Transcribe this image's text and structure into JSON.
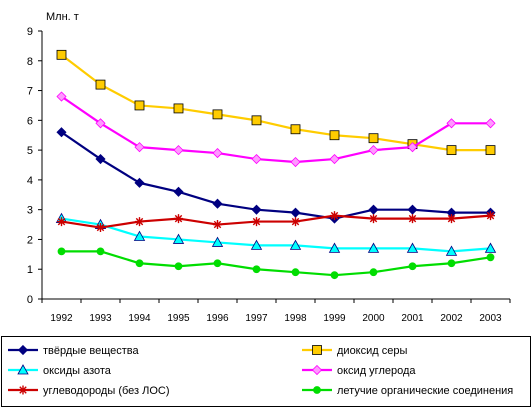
{
  "chart_data": {
    "type": "line",
    "ylabel": "Млн. т",
    "ylim": [
      0,
      9
    ],
    "yticks": [
      0,
      1,
      2,
      3,
      4,
      5,
      6,
      7,
      8,
      9
    ],
    "grid": false,
    "legend_position": "bottom",
    "categories": [
      "1992",
      "1993",
      "1994",
      "1995",
      "1996",
      "1997",
      "1998",
      "1999",
      "2000",
      "2001",
      "2002",
      "2003"
    ],
    "series": [
      {
        "name": "твёрдые вещества",
        "color": "#000080",
        "marker": "diamond",
        "marker_fill": "#000080",
        "values": [
          5.6,
          4.7,
          3.9,
          3.6,
          3.2,
          3.0,
          2.9,
          2.7,
          3.0,
          3.0,
          2.9,
          2.9
        ]
      },
      {
        "name": "диоксид серы",
        "color": "#FFCC00",
        "marker": "square",
        "marker_fill": "#FFCC00",
        "values": [
          8.2,
          7.2,
          6.5,
          6.4,
          6.2,
          6.0,
          5.7,
          5.5,
          5.4,
          5.2,
          5.0,
          5.0
        ]
      },
      {
        "name": "оксиды азота",
        "color": "#00FFFF",
        "marker": "triangle",
        "marker_fill": "#00FFFF",
        "values": [
          2.7,
          2.5,
          2.1,
          2.0,
          1.9,
          1.8,
          1.8,
          1.7,
          1.7,
          1.7,
          1.6,
          1.7
        ]
      },
      {
        "name": "оксид углерода",
        "color": "#FF00FF",
        "marker": "diamond",
        "marker_fill": "#FF99FF",
        "values": [
          6.8,
          5.9,
          5.1,
          5.0,
          4.9,
          4.7,
          4.6,
          4.7,
          5.0,
          5.1,
          5.9,
          5.9
        ]
      },
      {
        "name": "углеводороды (без ЛОС)",
        "color": "#CC0000",
        "marker": "star",
        "marker_fill": "#CC0000",
        "values": [
          2.6,
          2.4,
          2.6,
          2.7,
          2.5,
          2.6,
          2.6,
          2.8,
          2.7,
          2.7,
          2.7,
          2.8
        ]
      },
      {
        "name": "летучие органические соединения",
        "color": "#00DD00",
        "marker": "circle",
        "marker_fill": "#00DD00",
        "values": [
          1.6,
          1.6,
          1.2,
          1.1,
          1.2,
          1.0,
          0.9,
          0.8,
          0.9,
          1.1,
          1.2,
          1.4
        ]
      }
    ]
  }
}
